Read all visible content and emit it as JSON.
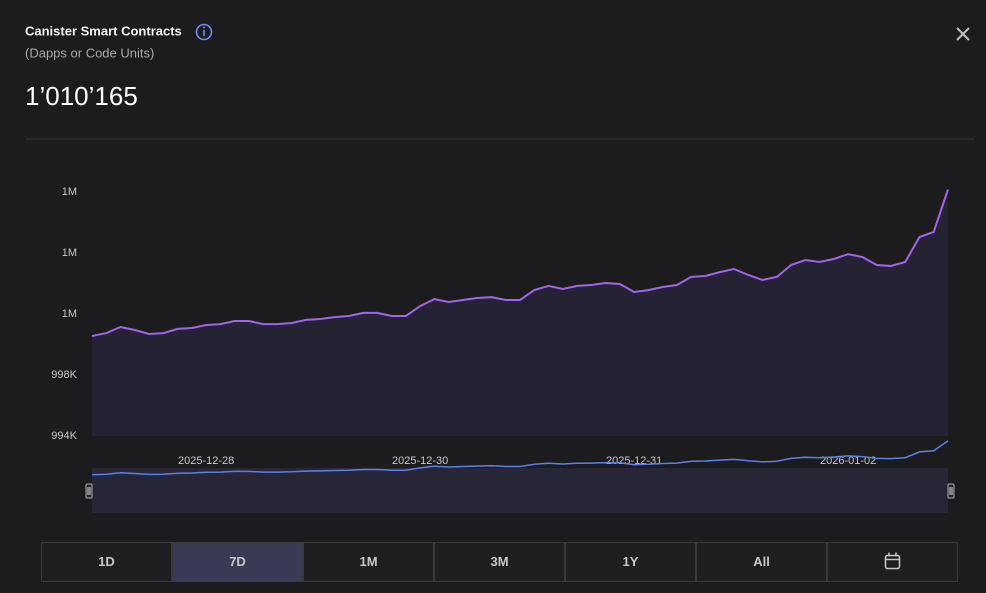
{
  "header": {
    "title": "Canister Smart Contracts",
    "subtitle": "(Dapps or Code Units)",
    "value": "1’010’165"
  },
  "chart_data": {
    "type": "line",
    "categories": [
      null,
      null,
      null,
      null,
      null,
      null,
      null,
      null,
      "2025-12-28",
      null,
      null,
      null,
      null,
      null,
      null,
      null,
      null,
      null,
      null,
      null,
      null,
      null,
      null,
      "2025-12-30",
      null,
      null,
      null,
      null,
      null,
      null,
      null,
      null,
      null,
      null,
      null,
      null,
      null,
      null,
      "2025-12-31",
      null,
      null,
      null,
      null,
      null,
      null,
      null,
      null,
      null,
      null,
      null,
      null,
      null,
      null,
      "2026-01-02",
      null,
      null,
      null,
      null,
      null,
      null,
      null
    ],
    "series": [
      {
        "color": "#a064e8",
        "values": [
          1000560,
          1000750,
          1001150,
          1000950,
          1000690,
          1000750,
          1001020,
          1001080,
          1001280,
          1001340,
          1001540,
          1001540,
          1001340,
          1001340,
          1001410,
          1001610,
          1001670,
          1001800,
          1001870,
          1002070,
          1002070,
          1001870,
          1001870,
          1002520,
          1002980,
          1002790,
          1002920,
          1003050,
          1003110,
          1002920,
          1002920,
          1003570,
          1003840,
          1003640,
          1003840,
          1003900,
          1004030,
          1003970,
          1003440,
          1003570,
          1003770,
          1003900,
          1004430,
          1004490,
          1004750,
          1004950,
          1004560,
          1004230,
          1004430,
          1005210,
          1005540,
          1005410,
          1005610,
          1005930,
          1005740,
          1005210,
          1005150,
          1005410,
          1007050,
          1007380,
          1010165
        ]
      }
    ],
    "ylim": [
      994000,
      1011000
    ],
    "yticks": [
      {
        "value": 994000,
        "label": "994K"
      },
      {
        "value": 998000,
        "label": "998K"
      },
      {
        "value": 1002000,
        "label": "1M"
      },
      {
        "value": 1006000,
        "label": "1M"
      },
      {
        "value": 1010000,
        "label": "1M"
      }
    ],
    "navigator_color": "#5b80e8"
  },
  "range_buttons": [
    "1D",
    "7D",
    "1M",
    "3M",
    "1Y",
    "All"
  ],
  "selected_range": 1
}
